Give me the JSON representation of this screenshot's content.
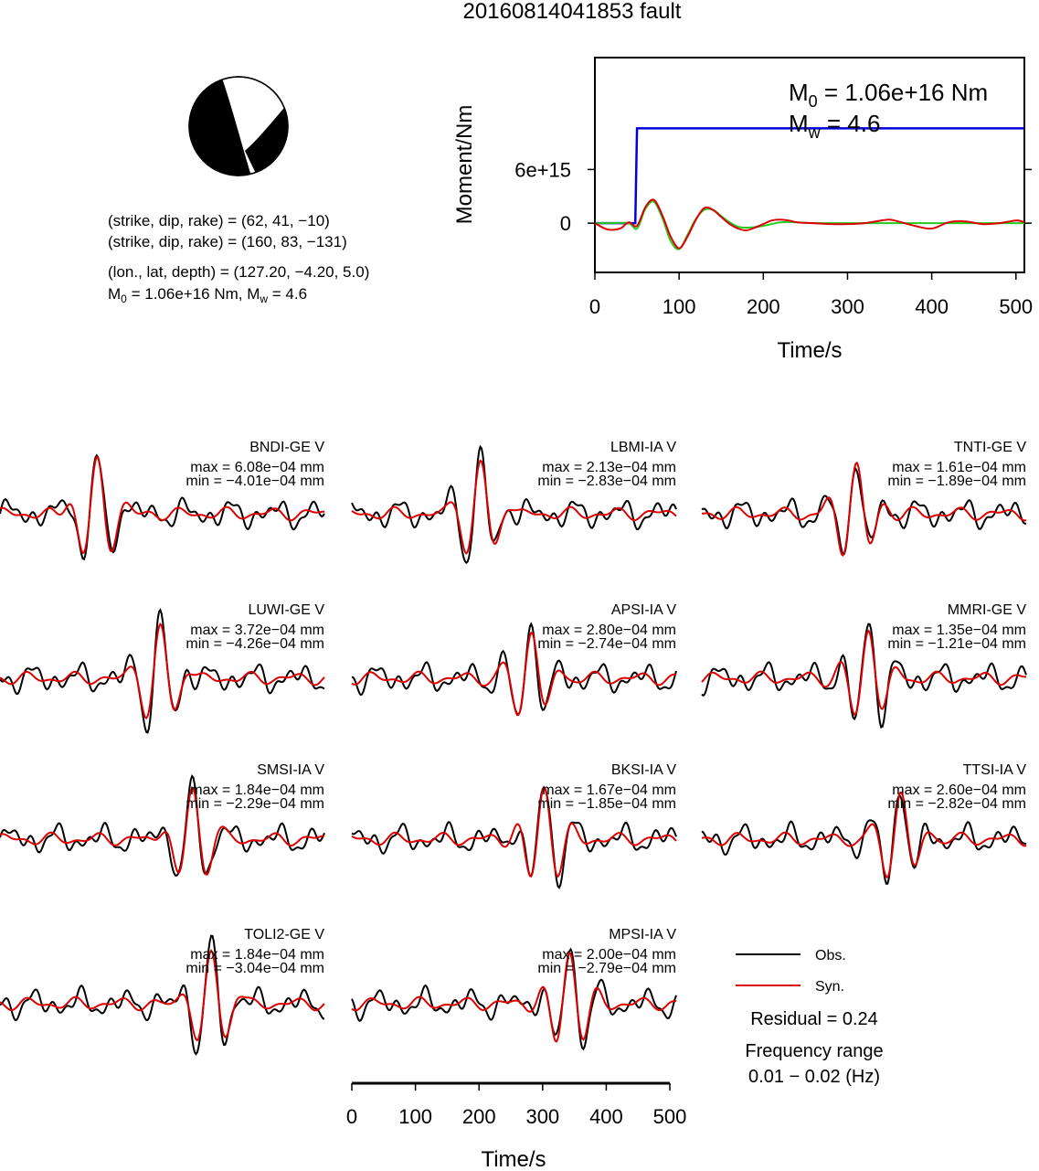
{
  "title": "20160814041853 fault",
  "mechanism": {
    "line1": "(strike, dip, rake) = (62, 41, −10)",
    "line2": "(strike, dip, rake) = (160, 83, −131)",
    "line3": "(lon., lat, depth) = (127.20, −4.20, 5.0)",
    "m0_label": "M",
    "m0_sub": "0",
    "m0_rest": " = 1.06e+16 Nm, M",
    "mw_sub": "w",
    "mw_rest": " = 4.6"
  },
  "moment_panel": {
    "m0_text_a": "M",
    "m0_text_sub": "0",
    "m0_text_b": " = 1.06e+16 Nm",
    "mw_text_a": "M",
    "mw_text_sub": "w",
    "mw_text_b": " = 4.6"
  },
  "chart_data": [
    {
      "type": "line",
      "panel": "moment-rate",
      "xlabel": "Time/s",
      "ylabel": "Moment/Nm",
      "xlim": [
        0,
        510
      ],
      "ylim": [
        -5500000000000000.0,
        1.85e+16
      ],
      "x_ticks": [
        0,
        100,
        200,
        300,
        400,
        500
      ],
      "x_tick_labels": [
        "0",
        "100",
        "200",
        "300",
        "400",
        "500"
      ],
      "y_ticks": [
        0,
        6000000000000000.0
      ],
      "y_tick_labels": [
        "0",
        "6e+15"
      ],
      "series": [
        {
          "color": "#0000dd",
          "x": [
            0,
            48,
            50,
            510
          ],
          "y": [
            0,
            0,
            1.06e+16,
            1.06e+16
          ]
        },
        {
          "color": "#22cc22",
          "x": [
            0,
            20,
            40,
            50,
            60,
            70,
            80,
            90,
            100,
            110,
            120,
            130,
            140,
            150,
            160,
            170,
            180,
            200,
            220,
            240,
            260,
            300,
            340,
            380,
            420,
            460,
            510
          ],
          "y": [
            0,
            0,
            0,
            -600000000000000.0,
            1600000000000000.0,
            2400000000000000.0,
            600000000000000.0,
            -2000000000000000.0,
            -2900000000000000.0,
            -1300000000000000.0,
            500000000000000.0,
            1500000000000000.0,
            1500000000000000.0,
            800000000000000.0,
            100000000000000.0,
            -400000000000000.0,
            -500000000000000.0,
            -300000000000000.0,
            100000000000000.0,
            100000000000000.0,
            0,
            0,
            0,
            0,
            0,
            0,
            0
          ]
        },
        {
          "color": "#dd0000",
          "x": [
            0,
            15,
            30,
            40,
            50,
            60,
            70,
            80,
            90,
            100,
            110,
            120,
            130,
            140,
            150,
            160,
            170,
            180,
            190,
            200,
            210,
            220,
            230,
            240,
            260,
            280,
            300,
            320,
            340,
            350,
            360,
            380,
            400,
            420,
            440,
            460,
            480,
            500,
            510
          ],
          "y": [
            0,
            -700000000000000.0,
            -600000000000000.0,
            100000000000000.0,
            -300000000000000.0,
            1800000000000000.0,
            2600000000000000.0,
            900000000000000.0,
            -1500000000000000.0,
            -2800000000000000.0,
            -1500000000000000.0,
            400000000000000.0,
            1700000000000000.0,
            1500000000000000.0,
            700000000000000.0,
            -100000000000000.0,
            -600000000000000.0,
            -800000000000000.0,
            -500000000000000.0,
            -100000000000000.0,
            300000000000000.0,
            400000000000000.0,
            300000000000000.0,
            100000000000000.0,
            0,
            -100000000000000.0,
            -100000000000000.0,
            0,
            300000000000000.0,
            400000000000000.0,
            200000000000000.0,
            -300000000000000.0,
            -600000000000000.0,
            100000000000000.0,
            200000000000000.0,
            -100000000000000.0,
            0,
            300000000000000.0,
            100000000000000.0
          ]
        }
      ]
    },
    {
      "type": "line",
      "panel": "waveforms",
      "xlabel": "Time/s",
      "xlim": [
        0,
        510
      ],
      "x_ticks": [
        0,
        100,
        200,
        300,
        400,
        500
      ],
      "x_tick_labels": [
        "0",
        "100",
        "200",
        "300",
        "400",
        "500"
      ],
      "stations": [
        {
          "name": "BNDI-GE V",
          "max": "max = 6.08e−04 mm",
          "min": "min = −4.01e−04 mm",
          "peak_time": 150
        },
        {
          "name": "LBMI-IA V",
          "max": "max = 2.13e−04 mm",
          "min": "min = −2.83e−04 mm",
          "peak_time": 200
        },
        {
          "name": "TNTI-GE V",
          "max": "max = 1.61e−04 mm",
          "min": "min = −1.89e−04 mm",
          "peak_time": 240
        },
        {
          "name": "LUWI-GE V",
          "max": "max = 3.72e−04 mm",
          "min": "min = −4.26e−04 mm",
          "peak_time": 250
        },
        {
          "name": "APSI-IA V",
          "max": "max = 2.80e−04 mm",
          "min": "min = −2.74e−04 mm",
          "peak_time": 280
        },
        {
          "name": "MMRI-GE V",
          "max": "max = 1.35e−04 mm",
          "min": "min = −1.21e−04 mm",
          "peak_time": 260
        },
        {
          "name": "SMSI-IA V",
          "max": "max = 1.84e−04 mm",
          "min": "min = −2.29e−04 mm",
          "peak_time": 300
        },
        {
          "name": "BKSI-IA V",
          "max": "max = 1.67e−04 mm",
          "min": "min = −1.85e−04 mm",
          "peak_time": 300
        },
        {
          "name": "TTSI-IA V",
          "max": "max = 2.60e−04 mm",
          "min": "min = −2.82e−04 mm",
          "peak_time": 310
        },
        {
          "name": "TOLI2-GE V",
          "max": "max = 1.84e−04 mm",
          "min": "min = −3.04e−04 mm",
          "peak_time": 330
        },
        {
          "name": "MPSI-IA V",
          "max": "max = 2.00e−04 mm",
          "min": "min = −2.79e−04 mm",
          "peak_time": 340
        }
      ],
      "series": [
        {
          "name": "Obs.",
          "color": "#000000"
        },
        {
          "name": "Syn.",
          "color": "#dd0000"
        }
      ]
    }
  ],
  "legend": {
    "obs_label": "Obs.",
    "syn_label": "Syn.",
    "residual": "Residual = 0.24",
    "freq_title": "Frequency range",
    "freq_range": "0.01 − 0.02 (Hz)"
  }
}
